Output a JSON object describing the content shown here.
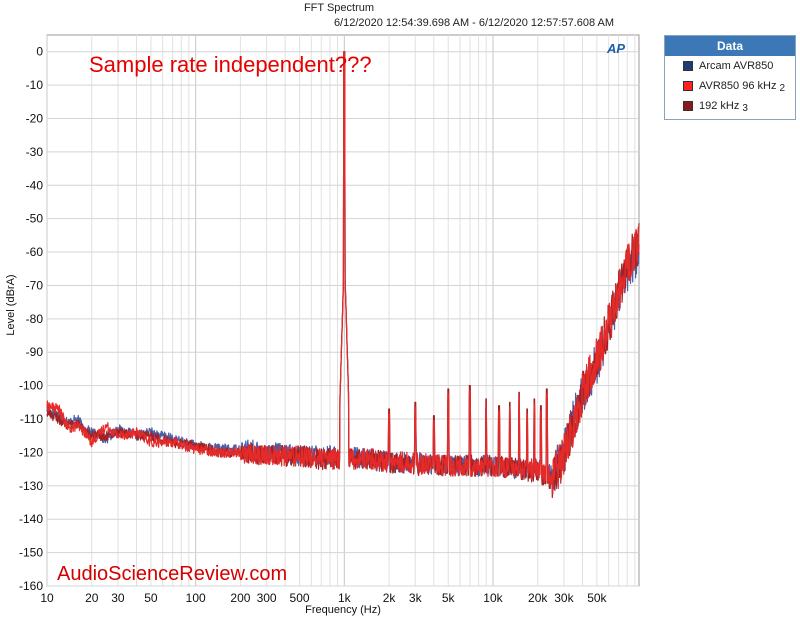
{
  "chart_data": {
    "type": "line",
    "title": "FFT Spectrum",
    "subtitle": "6/12/2020 12:54:39.698 AM - 6/12/2020 12:57:57.608 AM",
    "xlabel": "Frequency (Hz)",
    "ylabel": "Level (dBrA)",
    "x_scale": "log",
    "xlim": [
      10,
      96000
    ],
    "ylim": [
      -160,
      5
    ],
    "grid": true,
    "legend_title": "Data",
    "legend_position": "top-right",
    "x_ticks": [
      {
        "value": 10,
        "label": "10"
      },
      {
        "value": 20,
        "label": "20"
      },
      {
        "value": 30,
        "label": "30"
      },
      {
        "value": 50,
        "label": "50"
      },
      {
        "value": 100,
        "label": "100"
      },
      {
        "value": 200,
        "label": "200"
      },
      {
        "value": 300,
        "label": "300"
      },
      {
        "value": 500,
        "label": "500"
      },
      {
        "value": 1000,
        "label": "1k"
      },
      {
        "value": 2000,
        "label": "2k"
      },
      {
        "value": 3000,
        "label": "3k"
      },
      {
        "value": 5000,
        "label": "5k"
      },
      {
        "value": 10000,
        "label": "10k"
      },
      {
        "value": 20000,
        "label": "20k"
      },
      {
        "value": 30000,
        "label": "30k"
      },
      {
        "value": 50000,
        "label": "50k"
      }
    ],
    "y_ticks": [
      0,
      -10,
      -20,
      -30,
      -40,
      -50,
      -60,
      -70,
      -80,
      -90,
      -100,
      -110,
      -120,
      -130,
      -140,
      -150,
      -160
    ],
    "annotations": [
      "Sample rate independent???"
    ],
    "watermark": "AudioScienceReview.com",
    "series": [
      {
        "name": "Arcam AVR850",
        "index": "",
        "color": "#1f3a7a",
        "line_color": "#4a5fa8",
        "x": [
          10,
          12,
          14,
          16,
          18,
          20,
          25,
          30,
          40,
          50,
          70,
          100,
          150,
          200,
          300,
          500,
          700,
          900,
          1000,
          1100,
          1500,
          2000,
          3000,
          5000,
          7000,
          10000,
          15000,
          20000,
          25000,
          30000,
          35000,
          40000,
          50000,
          60000,
          70000,
          80000,
          96000
        ],
        "y": [
          -107,
          -109,
          -111,
          -110,
          -113,
          -114,
          -116,
          -113,
          -115,
          -114,
          -116,
          -118,
          -119,
          -119,
          -120,
          -121,
          -121,
          -121,
          0,
          -121,
          -122,
          -123,
          -123,
          -124,
          -124,
          -124,
          -125,
          -125,
          -127,
          -120,
          -110,
          -103,
          -93,
          -83,
          -73,
          -66,
          -60
        ]
      },
      {
        "name": "AVR850 96 kHz",
        "index": "2",
        "color": "#ff2020",
        "line_color": "#e52a2a",
        "x": [
          10,
          12,
          14,
          16,
          18,
          20,
          25,
          30,
          40,
          50,
          70,
          100,
          150,
          200,
          300,
          500,
          700,
          900,
          1000,
          1100,
          1500,
          2000,
          3000,
          5000,
          7000,
          10000,
          15000,
          20000,
          25000,
          30000,
          35000,
          40000,
          50000,
          60000,
          70000,
          80000,
          96000
        ],
        "y": [
          -106,
          -107,
          -113,
          -112,
          -114,
          -117,
          -112,
          -115,
          -114,
          -117,
          -117,
          -119,
          -120,
          -120,
          -121,
          -121,
          -122,
          -122,
          0,
          -122,
          -122,
          -123,
          -123,
          -124,
          -124,
          -124,
          -125,
          -125,
          -128,
          -121,
          -111,
          -102,
          -92,
          -82,
          -72,
          -64,
          -58
        ]
      },
      {
        "name": "192 kHz",
        "index": "3",
        "color": "#8b1a1a",
        "line_color": "#a52020",
        "x": [
          10,
          12,
          14,
          16,
          18,
          20,
          25,
          30,
          40,
          50,
          70,
          100,
          150,
          200,
          300,
          500,
          700,
          900,
          1000,
          1100,
          1500,
          2000,
          3000,
          5000,
          7000,
          10000,
          15000,
          20000,
          25000,
          30000,
          35000,
          40000,
          50000,
          60000,
          70000,
          80000,
          96000
        ],
        "y": [
          -108,
          -110,
          -112,
          -111,
          -114,
          -115,
          -115,
          -114,
          -115,
          -115,
          -117,
          -118,
          -120,
          -120,
          -121,
          -121,
          -122,
          -122,
          0,
          -122,
          -122,
          -123,
          -124,
          -124,
          -124,
          -124,
          -125,
          -126,
          -128,
          -121,
          -110,
          -102,
          -92,
          -82,
          -72,
          -64,
          -57
        ]
      }
    ],
    "harmonic_spikes": [
      {
        "x": 2000,
        "y": -110
      },
      {
        "x": 3000,
        "y": -108
      },
      {
        "x": 4000,
        "y": -112
      },
      {
        "x": 5000,
        "y": -104
      },
      {
        "x": 7000,
        "y": -103
      },
      {
        "x": 9000,
        "y": -107
      },
      {
        "x": 11000,
        "y": -109
      },
      {
        "x": 13000,
        "y": -108
      },
      {
        "x": 15000,
        "y": -105
      },
      {
        "x": 17000,
        "y": -110
      },
      {
        "x": 19000,
        "y": -107
      },
      {
        "x": 21000,
        "y": -109
      },
      {
        "x": 23000,
        "y": -104
      }
    ]
  }
}
